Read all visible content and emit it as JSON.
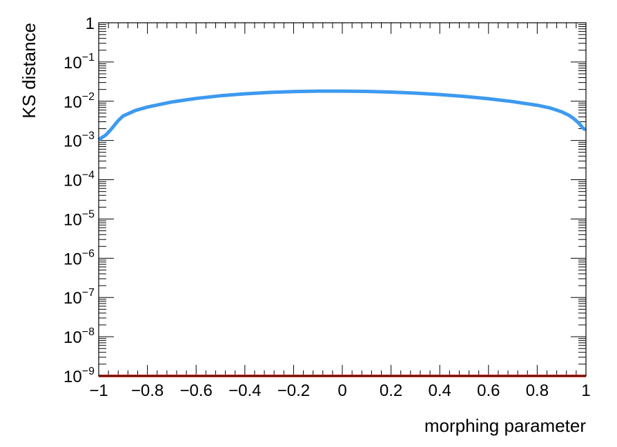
{
  "chart_data": {
    "type": "line",
    "title": "",
    "xlabel": "morphing parameter",
    "ylabel": "KS distance",
    "xlim": [
      -1,
      1
    ],
    "ylim": [
      1e-09,
      1
    ],
    "yscale": "log",
    "grid": false,
    "x_ticks": [
      -1,
      -0.8,
      -0.6,
      -0.4,
      -0.2,
      0,
      0.2,
      0.4,
      0.6,
      0.8,
      1
    ],
    "x_tick_labels": [
      "−1",
      "−0.8",
      "−0.6",
      "−0.4",
      "−0.2",
      "0",
      "0.2",
      "0.4",
      "0.6",
      "0.8",
      "1"
    ],
    "y_tick_labels": [
      {
        "base": "10",
        "exp": "−9"
      },
      {
        "base": "10",
        "exp": "−8"
      },
      {
        "base": "10",
        "exp": "−7"
      },
      {
        "base": "10",
        "exp": "−6"
      },
      {
        "base": "10",
        "exp": "−5"
      },
      {
        "base": "10",
        "exp": "−4"
      },
      {
        "base": "10",
        "exp": "−3"
      },
      {
        "base": "10",
        "exp": "−2"
      },
      {
        "base": "10",
        "exp": "−1"
      },
      {
        "base": "1",
        "exp": ""
      }
    ],
    "series": [
      {
        "color": "#3d9aef",
        "x": [
          -1.0,
          -0.97,
          -0.95,
          -0.92,
          -0.9,
          -0.85,
          -0.8,
          -0.7,
          -0.6,
          -0.5,
          -0.4,
          -0.3,
          -0.2,
          -0.1,
          0.0,
          0.1,
          0.2,
          0.3,
          0.4,
          0.5,
          0.6,
          0.7,
          0.8,
          0.85,
          0.9,
          0.93,
          0.95,
          0.97,
          0.99,
          1.0
        ],
        "y": [
          0.00105,
          0.0014,
          0.0019,
          0.0032,
          0.0042,
          0.0058,
          0.0071,
          0.0096,
          0.0118,
          0.0138,
          0.0155,
          0.0168,
          0.0177,
          0.0181,
          0.0181,
          0.0178,
          0.0171,
          0.0161,
          0.0148,
          0.0133,
          0.0116,
          0.0098,
          0.0079,
          0.0068,
          0.0054,
          0.0044,
          0.0036,
          0.0028,
          0.002,
          0.0019
        ]
      },
      {
        "color": "#d9342b",
        "x": [
          -1.0,
          1.0
        ],
        "y": [
          1e-09,
          1e-09
        ]
      }
    ]
  }
}
